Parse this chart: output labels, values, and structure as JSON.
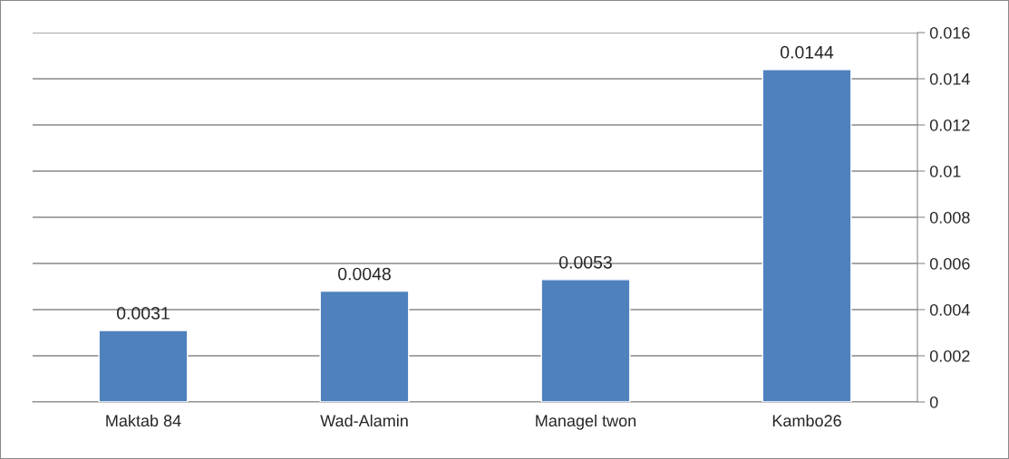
{
  "chart_data": {
    "type": "bar",
    "categories": [
      "Maktab 84",
      "Wad-Alamin",
      "Managel twon",
      "Kambo26"
    ],
    "values": [
      0.0031,
      0.0048,
      0.0053,
      0.0144
    ],
    "color": "#4f81bd",
    "ylim": [
      0,
      0.016
    ],
    "yticks": [
      0,
      0.002,
      0.004,
      0.006,
      0.008,
      0.01,
      0.012,
      0.014,
      0.016
    ],
    "grid": "y",
    "data_labels": true
  }
}
